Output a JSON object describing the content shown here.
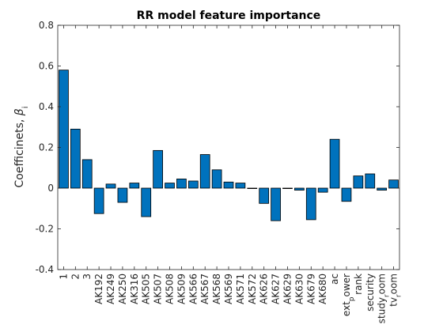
{
  "chart_data": {
    "type": "bar",
    "title": "RR model feature importance",
    "xlabel": "",
    "ylabel": "Coefficinets, ",
    "ylabel_symbol": "β",
    "ylabel_subscript": "i",
    "ylim": [
      -0.4,
      0.8
    ],
    "yticks": [
      -0.4,
      -0.2,
      0,
      0.2,
      0.4,
      0.6,
      0.8
    ],
    "ytick_labels": [
      "-0.4",
      "-0.2",
      "0",
      "0.2",
      "0.4",
      "0.6",
      "0.8"
    ],
    "grid": false,
    "bar_color": "#0072bd",
    "categories": [
      "1",
      "2",
      "3",
      "AK192",
      "AK249",
      "AK250",
      "AK316",
      "AK505",
      "AK507",
      "AK508",
      "AK509",
      "AK566",
      "AK567",
      "AK568",
      "AK569",
      "AK571",
      "AK572",
      "AK626",
      "AK627",
      "AK629",
      "AK630",
      "AK679",
      "AK680",
      "ac",
      "ext_power",
      "rank",
      "security",
      "study_room",
      "tv_room"
    ],
    "category_display": [
      {
        "main": "1"
      },
      {
        "main": "2"
      },
      {
        "main": "3"
      },
      {
        "main": "AK192"
      },
      {
        "main": "AK249"
      },
      {
        "main": "AK250"
      },
      {
        "main": "AK316"
      },
      {
        "main": "AK505"
      },
      {
        "main": "AK507"
      },
      {
        "main": "AK508"
      },
      {
        "main": "AK509"
      },
      {
        "main": "AK566"
      },
      {
        "main": "AK567"
      },
      {
        "main": "AK568"
      },
      {
        "main": "AK569"
      },
      {
        "main": "AK571"
      },
      {
        "main": "AK572"
      },
      {
        "main": "AK626"
      },
      {
        "main": "AK627"
      },
      {
        "main": "AK629"
      },
      {
        "main": "AK630"
      },
      {
        "main": "AK679"
      },
      {
        "main": "AK680"
      },
      {
        "main": "ac"
      },
      {
        "main": "ext",
        "sub": "p",
        "rest": "ower"
      },
      {
        "main": "rank"
      },
      {
        "main": "security"
      },
      {
        "main": "study",
        "sub": "r",
        "rest": "oom"
      },
      {
        "main": "tv",
        "sub": "r",
        "rest": "oom"
      }
    ],
    "values": [
      0.58,
      0.29,
      0.14,
      -0.125,
      0.02,
      -0.07,
      0.025,
      -0.14,
      0.185,
      0.025,
      0.045,
      0.035,
      0.165,
      0.09,
      0.03,
      0.025,
      0.0,
      -0.075,
      -0.16,
      0.0,
      -0.01,
      -0.155,
      -0.02,
      0.24,
      -0.065,
      0.06,
      0.07,
      -0.01,
      0.04
    ]
  }
}
